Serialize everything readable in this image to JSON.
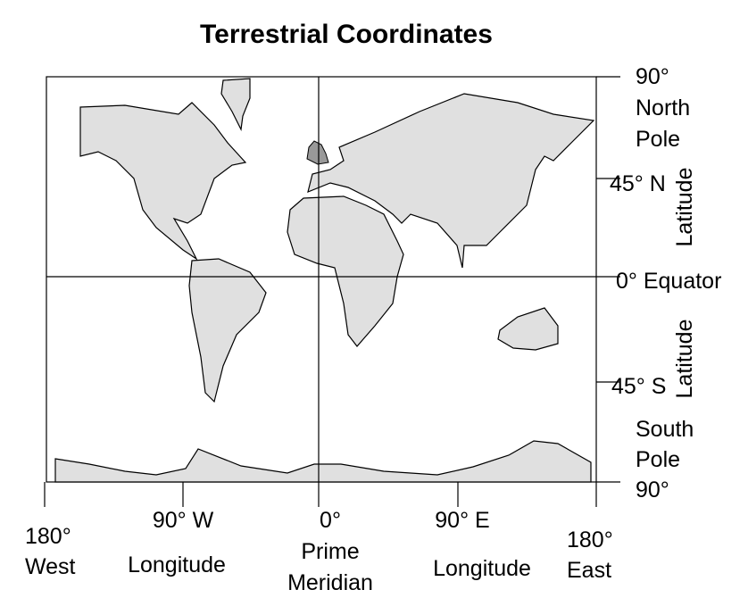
{
  "title": "Terrestrial Coordinates",
  "latitude_labels": {
    "north_pole": [
      "90°",
      "North",
      "Pole"
    ],
    "n45": "45° N",
    "equator": "0° Equator",
    "s45": "45° S",
    "south_pole": [
      "South",
      "Pole",
      "90°"
    ],
    "axis_title_north": "Latitude",
    "axis_title_south": "Latitude"
  },
  "longitude_labels": {
    "west180": [
      "180°",
      "West"
    ],
    "w90": "90° W",
    "axis_title_west": "Longitude",
    "prime": [
      "0°",
      "Prime",
      "Meridian"
    ],
    "e90": "90° E",
    "axis_title_east": "Longitude",
    "east180": [
      "180°",
      "East"
    ]
  }
}
